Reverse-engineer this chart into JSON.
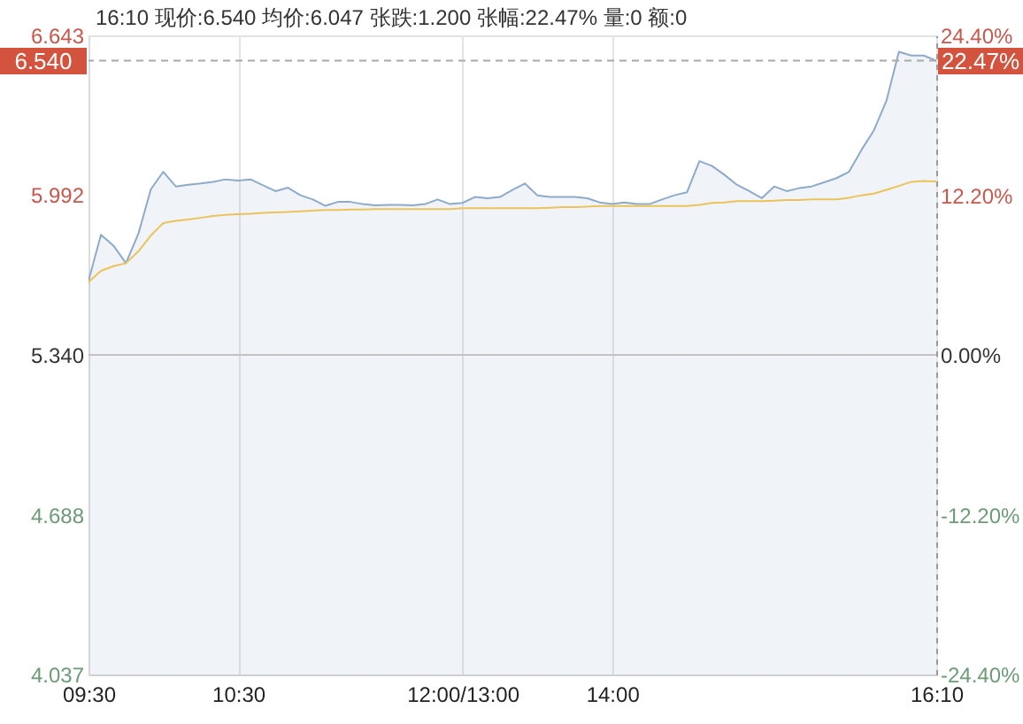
{
  "chart_data": {
    "type": "line",
    "title": "16:10 现价:6.540 均价:6.047 张跌:1.200 张幅:22.47% 量:0 额:0",
    "categories": [
      "09:30",
      null,
      null,
      null,
      null,
      null,
      null,
      null,
      null,
      null,
      null,
      null,
      "10:30",
      null,
      null,
      null,
      null,
      null,
      null,
      null,
      null,
      null,
      null,
      null,
      null,
      null,
      null,
      null,
      null,
      null,
      "12:00/13:00",
      null,
      null,
      null,
      null,
      null,
      null,
      null,
      null,
      null,
      null,
      null,
      "14:00",
      null,
      null,
      null,
      null,
      null,
      null,
      null,
      null,
      null,
      null,
      null,
      null,
      null,
      null,
      null,
      null,
      null,
      null,
      null,
      null,
      null,
      null,
      null,
      null,
      null,
      "16:10"
    ],
    "series": [
      {
        "type": "area",
        "color": "#8eaacb",
        "values": [
          5.642,
          5.83,
          5.786,
          5.714,
          5.834,
          6.015,
          6.087,
          6.027,
          6.034,
          6.039,
          6.046,
          6.056,
          6.051,
          6.056,
          6.032,
          6.008,
          6.022,
          5.991,
          5.974,
          5.948,
          5.964,
          5.964,
          5.955,
          5.95,
          5.952,
          5.952,
          5.95,
          5.955,
          5.974,
          5.955,
          5.96,
          5.984,
          5.979,
          5.984,
          6.013,
          6.039,
          5.991,
          5.984,
          5.984,
          5.984,
          5.979,
          5.962,
          5.955,
          5.962,
          5.955,
          5.955,
          5.974,
          5.991,
          6.003,
          6.13,
          6.111,
          6.075,
          6.034,
          6.008,
          5.979,
          6.027,
          6.008,
          6.02,
          6.027,
          6.044,
          6.061,
          6.087,
          6.176,
          6.256,
          6.376,
          6.576,
          6.561,
          6.561,
          6.54
        ]
      },
      {
        "color": "#ecc25a",
        "values": [
          5.637,
          5.683,
          5.702,
          5.714,
          5.762,
          5.827,
          5.878,
          5.887,
          5.892,
          5.899,
          5.907,
          5.911,
          5.914,
          5.916,
          5.919,
          5.921,
          5.923,
          5.926,
          5.928,
          5.931,
          5.931,
          5.933,
          5.933,
          5.935,
          5.935,
          5.935,
          5.935,
          5.935,
          5.935,
          5.935,
          5.938,
          5.938,
          5.938,
          5.938,
          5.938,
          5.938,
          5.938,
          5.94,
          5.943,
          5.943,
          5.945,
          5.947,
          5.947,
          5.947,
          5.947,
          5.947,
          5.947,
          5.947,
          5.947,
          5.952,
          5.96,
          5.962,
          5.967,
          5.967,
          5.967,
          5.969,
          5.972,
          5.972,
          5.974,
          5.974,
          5.974,
          5.981,
          5.991,
          5.998,
          6.013,
          6.029,
          6.046,
          6.049,
          6.047
        ]
      }
    ],
    "ylim": [
      4.037,
      6.643
    ],
    "yticks": [
      4.037,
      4.688,
      {
        "value": 5.34,
        "label": "5.340"
      },
      5.992,
      6.643
    ],
    "y2lim": [
      -24.4,
      24.4
    ],
    "y2ticks": [
      {
        "value": -24.4,
        "label": "-24.40%"
      },
      {
        "value": -12.2,
        "label": "-12.20%"
      },
      {
        "value": 0,
        "label": "0.00%"
      },
      {
        "value": 12.2,
        "label": "12.20%"
      },
      {
        "value": 24.4,
        "label": "24.40%"
      }
    ],
    "ref_lines": [
      {
        "axis": "y",
        "value": 5.34
      },
      {
        "axis": "y",
        "value": 6.54,
        "label": "6.540",
        "line_style": "dashed"
      }
    ],
    "annotations": [
      "22.47%"
    ],
    "grid": "x"
  }
}
